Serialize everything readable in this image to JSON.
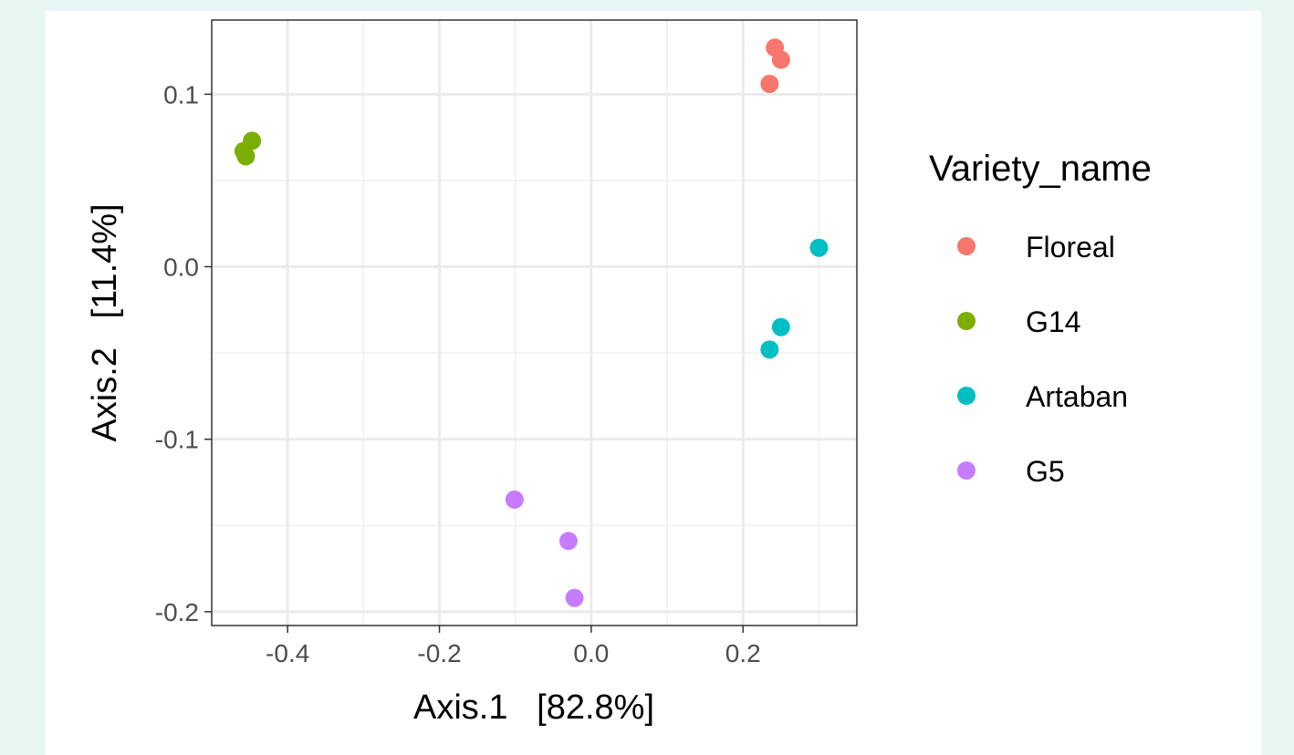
{
  "chart_data": {
    "type": "scatter",
    "xlabel": "Axis.1   [82.8%]",
    "ylabel": "Axis.2   [11.4%]",
    "xlim": [
      -0.5,
      0.35
    ],
    "ylim": [
      -0.208,
      0.143
    ],
    "x_ticks": [
      -0.4,
      -0.2,
      0.0,
      0.2
    ],
    "x_tick_labels": [
      "-0.4",
      "-0.2",
      "0.0",
      "0.2"
    ],
    "y_ticks": [
      -0.2,
      -0.1,
      0.0,
      0.1
    ],
    "y_tick_labels": [
      "-0.2",
      "-0.1",
      "0.0",
      "0.1"
    ],
    "grid": true,
    "legend": {
      "title": "Variety_name",
      "position": "right"
    },
    "series": [
      {
        "name": "Floreal",
        "color": "#F8766D",
        "points": [
          [
            0.242,
            0.127
          ],
          [
            0.25,
            0.12
          ],
          [
            0.235,
            0.106
          ]
        ]
      },
      {
        "name": "G14",
        "color": "#7CAE00",
        "points": [
          [
            -0.447,
            0.073
          ],
          [
            -0.458,
            0.067
          ],
          [
            -0.455,
            0.064
          ]
        ]
      },
      {
        "name": "Artaban",
        "color": "#00BFC4",
        "points": [
          [
            0.3,
            0.011
          ],
          [
            0.25,
            -0.035
          ],
          [
            0.235,
            -0.048
          ]
        ]
      },
      {
        "name": "G5",
        "color": "#C77CFF",
        "points": [
          [
            -0.101,
            -0.135
          ],
          [
            -0.03,
            -0.159
          ],
          [
            -0.022,
            -0.192
          ]
        ]
      }
    ]
  }
}
